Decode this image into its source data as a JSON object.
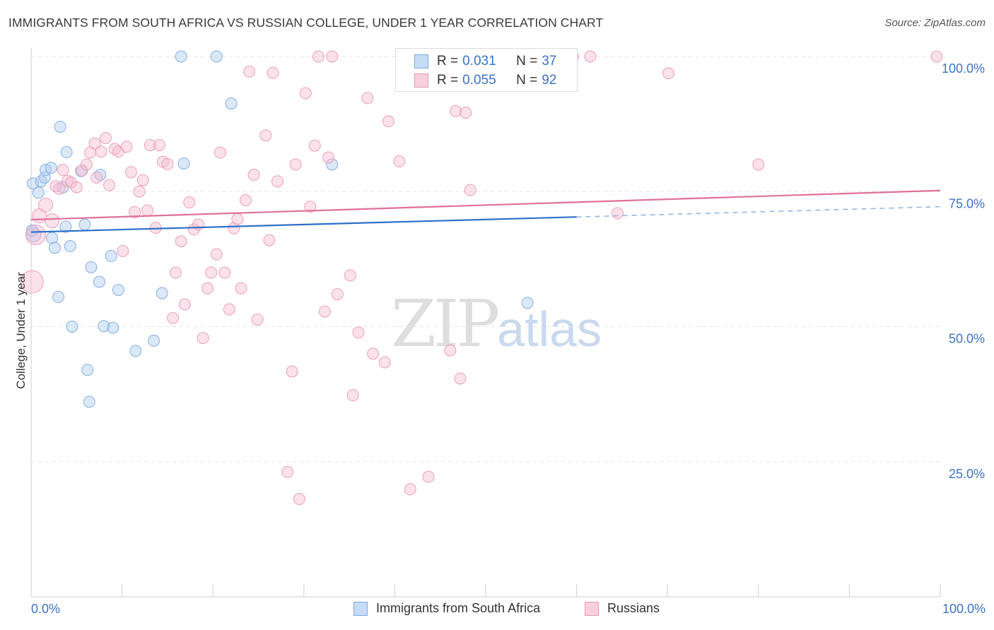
{
  "title": "IMMIGRANTS FROM SOUTH AFRICA VS RUSSIAN COLLEGE, UNDER 1 YEAR CORRELATION CHART",
  "source": "Source: ZipAtlas.com",
  "watermark": {
    "zip": "ZIP",
    "atlas": "atlas"
  },
  "legend": {
    "rows": [
      {
        "r_label": "R = ",
        "r_value": "0.031",
        "n_label": "N = ",
        "n_value": "37"
      },
      {
        "r_label": "R = ",
        "r_value": "0.055",
        "n_label": "N = ",
        "n_value": "92"
      }
    ]
  },
  "bottom_legend": [
    "Immigrants from South Africa",
    "Russians"
  ],
  "colors": {
    "blue": "#3b73c4",
    "blue_fill": "#aecbef",
    "blue_line": "#2f6fc8",
    "pink": "#e87ea3",
    "pink_fill": "#f5bcd0",
    "pink_line": "#e0709a",
    "grid": "#e3e3e3",
    "axis_label": "#3b73c4"
  },
  "chart_data": {
    "type": "scatter",
    "title": "IMMIGRANTS FROM SOUTH AFRICA VS RUSSIAN COLLEGE, UNDER 1 YEAR CORRELATION CHART",
    "xlabel": "",
    "ylabel": "College, Under 1 year",
    "xlim": [
      0,
      100
    ],
    "ylim": [
      0,
      100
    ],
    "x_tick_labels": [
      "0.0%",
      "100.0%"
    ],
    "y_tick_values": [
      25,
      50,
      75,
      100
    ],
    "y_tick_labels": [
      "25.0%",
      "50.0%",
      "75.0%",
      "100.0%"
    ],
    "grid": true,
    "legend_position": "top-center",
    "series": [
      {
        "name": "Immigrants from South Africa",
        "color": "#aecbef",
        "stats": {
          "R": 0.031,
          "N": 37
        },
        "trend": {
          "x0": 0,
          "y0": 67.5,
          "x1": 60,
          "y1": 70.3,
          "dashed_to_x": 100,
          "dashed_to_y": 72.2
        },
        "points": [
          [
            0.2,
            76.5,
            8
          ],
          [
            0.3,
            67.0,
            10
          ],
          [
            0.8,
            74.8,
            8
          ],
          [
            1.1,
            76.9,
            8
          ],
          [
            1.5,
            77.6,
            8
          ],
          [
            1.6,
            79.0,
            8
          ],
          [
            2.2,
            79.4,
            8
          ],
          [
            2.3,
            66.4,
            8
          ],
          [
            2.6,
            64.6,
            8
          ],
          [
            3.0,
            55.5,
            8
          ],
          [
            3.2,
            87.0,
            8
          ],
          [
            3.5,
            75.8,
            8
          ],
          [
            3.8,
            68.5,
            8
          ],
          [
            3.9,
            82.3,
            8
          ],
          [
            4.3,
            64.9,
            8
          ],
          [
            4.5,
            50.0,
            8
          ],
          [
            5.5,
            78.8,
            8
          ],
          [
            5.9,
            68.9,
            8
          ],
          [
            6.2,
            42.0,
            8
          ],
          [
            6.4,
            36.1,
            8
          ],
          [
            6.6,
            61.0,
            8
          ],
          [
            7.5,
            58.3,
            8
          ],
          [
            7.6,
            78.1,
            8
          ],
          [
            8.0,
            50.1,
            8
          ],
          [
            8.8,
            63.1,
            8
          ],
          [
            9.0,
            49.8,
            8
          ],
          [
            9.6,
            56.8,
            8
          ],
          [
            11.5,
            45.5,
            8
          ],
          [
            13.5,
            47.4,
            8
          ],
          [
            14.4,
            56.2,
            8
          ],
          [
            16.8,
            80.2,
            8
          ],
          [
            16.5,
            100.0,
            8
          ],
          [
            20.4,
            100.0,
            8
          ],
          [
            22.0,
            91.3,
            8
          ],
          [
            33.1,
            80.0,
            8
          ],
          [
            54.6,
            54.4,
            8
          ],
          [
            0.1,
            67.8,
            8
          ]
        ]
      },
      {
        "name": "Russians",
        "color": "#f5bcd0",
        "stats": {
          "R": 0.055,
          "N": 92
        },
        "trend": {
          "x0": 0,
          "y0": 69.8,
          "x1": 100,
          "y1": 75.2
        },
        "points": [
          [
            0.1,
            58.3,
            16
          ],
          [
            0.5,
            67.0,
            14
          ],
          [
            0.9,
            70.5,
            10
          ],
          [
            1.6,
            72.5,
            10
          ],
          [
            2.3,
            69.6,
            10
          ],
          [
            2.7,
            76.0,
            8
          ],
          [
            3.1,
            75.5,
            8
          ],
          [
            3.5,
            79.0,
            8
          ],
          [
            4.0,
            77.0,
            8
          ],
          [
            4.4,
            76.7,
            8
          ],
          [
            5.0,
            75.8,
            8
          ],
          [
            5.6,
            78.9,
            8
          ],
          [
            6.1,
            80.0,
            8
          ],
          [
            6.5,
            82.2,
            8
          ],
          [
            7.0,
            83.9,
            8
          ],
          [
            7.2,
            77.6,
            8
          ],
          [
            7.7,
            82.4,
            8
          ],
          [
            8.2,
            84.9,
            8
          ],
          [
            8.6,
            76.2,
            8
          ],
          [
            9.2,
            82.9,
            8
          ],
          [
            9.6,
            82.4,
            8
          ],
          [
            10.1,
            64.0,
            8
          ],
          [
            10.5,
            83.3,
            8
          ],
          [
            11.0,
            78.6,
            8
          ],
          [
            11.4,
            71.2,
            8
          ],
          [
            11.9,
            75.0,
            8
          ],
          [
            12.3,
            77.1,
            8
          ],
          [
            12.8,
            71.5,
            8
          ],
          [
            13.1,
            83.6,
            8
          ],
          [
            13.7,
            68.3,
            8
          ],
          [
            14.1,
            83.6,
            8
          ],
          [
            14.5,
            80.5,
            8
          ],
          [
            15.0,
            80.1,
            8
          ],
          [
            15.6,
            51.6,
            8
          ],
          [
            15.9,
            60.0,
            8
          ],
          [
            16.5,
            65.8,
            8
          ],
          [
            16.9,
            54.1,
            8
          ],
          [
            17.4,
            73.0,
            8
          ],
          [
            17.9,
            68.0,
            8
          ],
          [
            18.4,
            68.9,
            8
          ],
          [
            18.9,
            47.9,
            8
          ],
          [
            19.4,
            57.1,
            8
          ],
          [
            19.8,
            60.0,
            8
          ],
          [
            20.4,
            63.4,
            8
          ],
          [
            20.8,
            82.2,
            8
          ],
          [
            21.3,
            60.0,
            8
          ],
          [
            21.8,
            53.2,
            8
          ],
          [
            22.3,
            68.2,
            8
          ],
          [
            22.7,
            69.9,
            8
          ],
          [
            23.1,
            57.1,
            8
          ],
          [
            23.6,
            73.4,
            8
          ],
          [
            24.0,
            97.2,
            8
          ],
          [
            24.5,
            78.1,
            8
          ],
          [
            24.9,
            51.3,
            8
          ],
          [
            25.8,
            85.4,
            8
          ],
          [
            26.2,
            66.0,
            8
          ],
          [
            26.6,
            97.0,
            8
          ],
          [
            27.1,
            76.9,
            8
          ],
          [
            28.7,
            41.7,
            8
          ],
          [
            29.1,
            80.0,
            8
          ],
          [
            29.5,
            18.1,
            8
          ],
          [
            30.2,
            93.2,
            8
          ],
          [
            30.7,
            72.2,
            8
          ],
          [
            31.2,
            83.5,
            8
          ],
          [
            31.6,
            100.0,
            8
          ],
          [
            32.3,
            52.8,
            8
          ],
          [
            32.7,
            81.3,
            8
          ],
          [
            33.1,
            100.0,
            8
          ],
          [
            33.7,
            56.0,
            8
          ],
          [
            35.1,
            59.5,
            8
          ],
          [
            35.4,
            37.3,
            8
          ],
          [
            36.0,
            48.9,
            8
          ],
          [
            37.0,
            92.3,
            8
          ],
          [
            37.6,
            45.0,
            8
          ],
          [
            38.9,
            43.4,
            8
          ],
          [
            39.3,
            88.0,
            8
          ],
          [
            40.5,
            80.6,
            8
          ],
          [
            41.7,
            19.9,
            8
          ],
          [
            43.7,
            22.2,
            8
          ],
          [
            45.3,
            100.0,
            8
          ],
          [
            46.1,
            45.6,
            8
          ],
          [
            46.7,
            89.9,
            8
          ],
          [
            47.2,
            40.4,
            8
          ],
          [
            47.8,
            89.6,
            8
          ],
          [
            48.3,
            75.3,
            8
          ],
          [
            59.6,
            100.0,
            8
          ],
          [
            61.5,
            100.0,
            8
          ],
          [
            64.5,
            71.0,
            8
          ],
          [
            70.1,
            96.9,
            8
          ],
          [
            80.0,
            80.0,
            8
          ],
          [
            99.6,
            100.0,
            8
          ],
          [
            28.2,
            23.1,
            8
          ]
        ]
      }
    ]
  }
}
